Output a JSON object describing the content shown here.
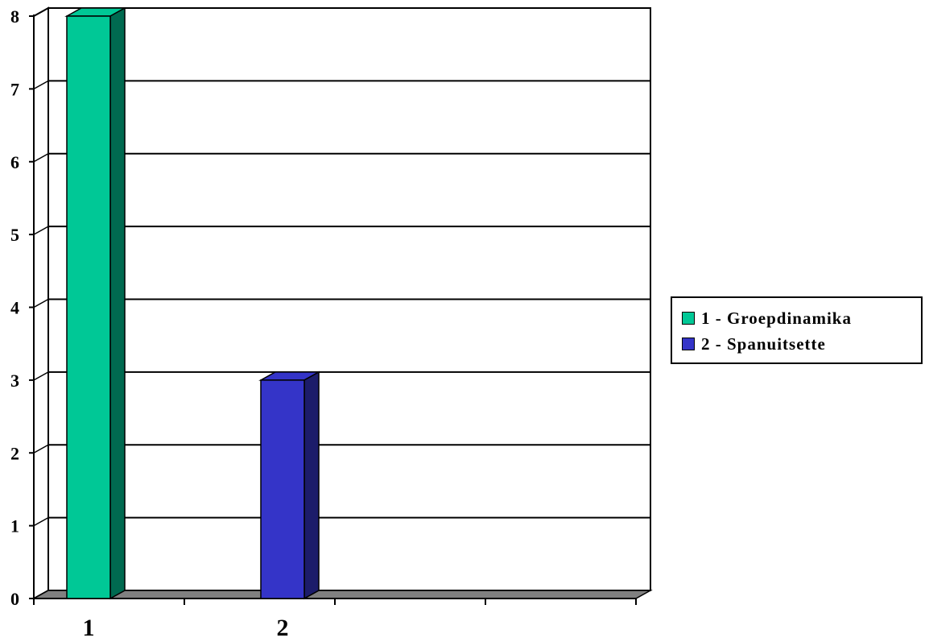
{
  "chart_data": {
    "type": "bar",
    "three_d": true,
    "categories": [
      "1",
      "2"
    ],
    "series": [
      {
        "name": "1 - Groepdinamika",
        "color": "#00C896",
        "side_color": "#006A50",
        "values": [
          8,
          null
        ]
      },
      {
        "name": "2 - Spanuitsette",
        "color": "#3434C8",
        "side_color": "#1C1C6A",
        "values": [
          null,
          3
        ]
      }
    ],
    "y_ticks": [
      "0",
      "1",
      "2",
      "3",
      "4",
      "5",
      "6",
      "7",
      "8"
    ],
    "ylim": [
      0,
      8
    ],
    "grid": true,
    "legend_position": "right",
    "title": "",
    "xlabel": "",
    "ylabel": "",
    "floor_color": "#808080"
  }
}
